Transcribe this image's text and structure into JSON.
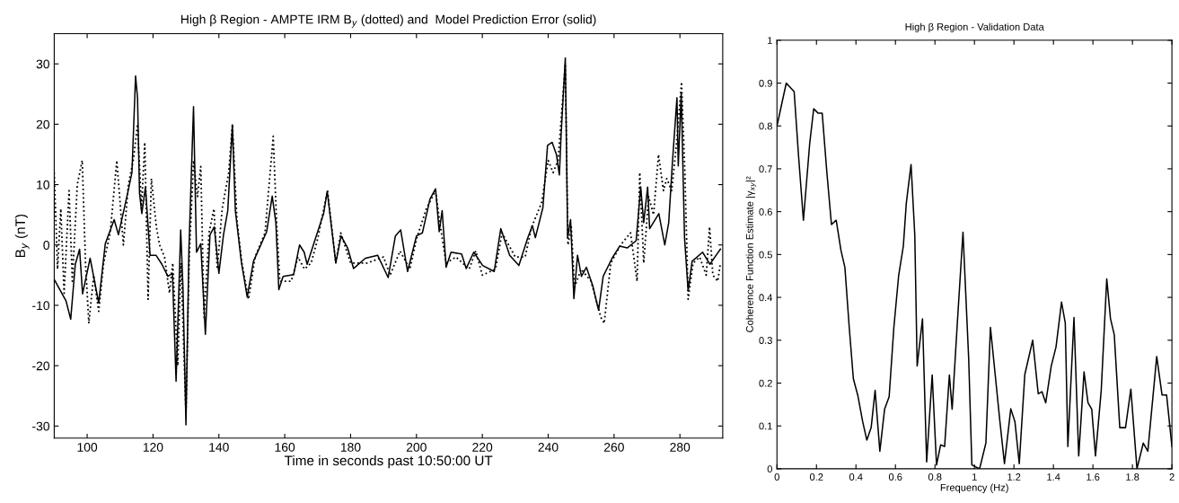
{
  "chart_data": [
    {
      "type": "line",
      "title": "High β Region - AMPTE IRM B$_{y}$ (dotted) and  Model Prediction Error (solid)",
      "xlabel": "Time in seconds past 10:50:00 UT",
      "ylabel": "B$_{y}$ (nT)",
      "xlim": [
        90,
        293
      ],
      "ylim": [
        -32,
        35
      ],
      "xticks": [
        100,
        120,
        140,
        160,
        180,
        200,
        220,
        240,
        260,
        280
      ],
      "yticks": [
        -30,
        -20,
        -10,
        0,
        10,
        20,
        30
      ],
      "grid": false,
      "series": [
        {
          "color": "#000000",
          "line_style": "dotted",
          "x": [
            90,
            91,
            92,
            93,
            94.5,
            95.5,
            97,
            98.5,
            99.5,
            100.5,
            102,
            103.5,
            105,
            107,
            109,
            111,
            112.5,
            114,
            115.3,
            116.5,
            117.5,
            118.5,
            119.5,
            121,
            122,
            123.5,
            125,
            126,
            127.5,
            128.5,
            130,
            131,
            132.3,
            133.5,
            134.5,
            135.5,
            137,
            138.5,
            139.5,
            141,
            143,
            144.1,
            145.5,
            147,
            149,
            151,
            154,
            156.5,
            157.5,
            158.5,
            160,
            162,
            164,
            166,
            168,
            170,
            173,
            175.5,
            177,
            180,
            185,
            190,
            192,
            195,
            198,
            200,
            203,
            205.8,
            207,
            209,
            212,
            216,
            218,
            220,
            224,
            226,
            230,
            233,
            235,
            238,
            240,
            241.5,
            243,
            245.2,
            246,
            247,
            248,
            250,
            253,
            256,
            257,
            259,
            262,
            265,
            267,
            267.8,
            269,
            270.5,
            272,
            273.5,
            275,
            276,
            277.5,
            279,
            280.5,
            281.5,
            282.5,
            284,
            286,
            288,
            289,
            290,
            291.5,
            292.3
          ],
          "values": [
            12,
            -4,
            6,
            -8,
            9,
            -6,
            10,
            14,
            -3,
            -13,
            -5,
            -11,
            -3,
            2,
            14,
            0,
            10,
            14,
            20,
            6,
            17,
            -9,
            11,
            3,
            0,
            -2,
            -8,
            -3,
            -20,
            -3,
            -28,
            -2,
            14,
            8,
            13,
            -12,
            2,
            6,
            -4,
            6,
            12,
            20,
            4,
            -3,
            -9,
            -2,
            2,
            18,
            4,
            -6,
            -6,
            -6,
            -2,
            -4,
            -3,
            1,
            9,
            -3,
            2,
            -3,
            -3,
            -2,
            -5,
            -1,
            -4,
            1,
            6,
            9,
            4,
            -3,
            -2,
            -4,
            -1,
            -5,
            -4,
            2,
            -2,
            -2,
            3,
            7,
            14,
            12,
            14,
            30,
            0,
            3,
            -7,
            -4,
            -6,
            -12,
            -13,
            -3,
            0,
            2,
            -6,
            12,
            -3,
            8,
            5,
            15,
            9,
            11,
            9,
            17,
            27,
            12,
            -9,
            -3,
            -2,
            -5,
            3,
            -5,
            -6,
            -3
          ]
        },
        {
          "color": "#000000",
          "line_style": "solid",
          "x": [
            90,
            93.6,
            95,
            96.4,
            97.7,
            98.6,
            100.9,
            103.5,
            105.5,
            108.2,
            109.5,
            112.3,
            113.6,
            114.7,
            115.3,
            115.9,
            116.6,
            117.7,
            119.1,
            120.9,
            122.7,
            124.5,
            125.9,
            127,
            128.4,
            129.1,
            130,
            130.9,
            132.3,
            133.2,
            134.5,
            135.9,
            137.3,
            138.6,
            140,
            141.4,
            142.7,
            144.1,
            145,
            146.8,
            148.6,
            150.5,
            152.3,
            154.5,
            156.2,
            157.3,
            158.2,
            159.5,
            162.7,
            164.5,
            165.9,
            166.8,
            169.1,
            171.8,
            172.9,
            175.5,
            177.1,
            179.1,
            180.9,
            184.5,
            188.2,
            191.4,
            193.6,
            195.2,
            197.3,
            200,
            201.8,
            204.1,
            205.8,
            206.9,
            207.8,
            209,
            210.5,
            213.7,
            215.1,
            217.4,
            220.1,
            223.6,
            225.6,
            228.3,
            231.1,
            233.8,
            235.2,
            236.1,
            238.4,
            239.8,
            241.2,
            242.5,
            243.4,
            243.9,
            245.2,
            245.9,
            246.8,
            247.8,
            248.9,
            250.1,
            251.6,
            253.5,
            255.3,
            256.7,
            259.4,
            261.7,
            264,
            266.7,
            268.1,
            269,
            270.2,
            270.8,
            273.6,
            275.4,
            276.6,
            277.7,
            279.1,
            279.5,
            280.4,
            281.4,
            282.5,
            283.7,
            286.9,
            289.1,
            291,
            292.3
          ],
          "values": [
            -5.7,
            -9.3,
            -12.3,
            -3.2,
            -0.7,
            -8.1,
            -2.2,
            -9.6,
            0.2,
            4.2,
            1.7,
            8.6,
            12,
            28,
            24.3,
            8.6,
            5.2,
            9.6,
            -1.7,
            -1.7,
            -3.2,
            -5.2,
            -4.7,
            -22.6,
            2.5,
            -7.1,
            -29.8,
            -0.7,
            22.9,
            -1.2,
            0.2,
            -14.8,
            1.7,
            3,
            -4.7,
            1.7,
            5.7,
            19.9,
            5.7,
            -2.7,
            -8.6,
            -2.7,
            -0.5,
            2.2,
            8.1,
            3.7,
            -7.4,
            -5.2,
            -4.9,
            0,
            -1.2,
            -3.2,
            0.7,
            5.2,
            8.9,
            -3,
            1.5,
            -0.5,
            -3.9,
            -2.2,
            -1.7,
            -5.4,
            1.5,
            2.5,
            -4.4,
            1.5,
            2,
            7.6,
            9.3,
            2.2,
            5.7,
            -3.7,
            -1.2,
            -1.5,
            -3.9,
            -1.2,
            -3.4,
            -4.4,
            2.7,
            -1.7,
            -3.4,
            1.2,
            3.2,
            1.2,
            6.2,
            16.5,
            17,
            15,
            11.6,
            18,
            31,
            1.2,
            4.2,
            -8.9,
            -1.7,
            -5.2,
            -3.7,
            -6.7,
            -10.8,
            -5.2,
            -2.2,
            -0.2,
            -0.5,
            0.7,
            9.6,
            3.7,
            9.6,
            2.7,
            5.2,
            0,
            3.7,
            13.5,
            24.4,
            13.1,
            25.1,
            1.2,
            -7.6,
            -2.7,
            -1.2,
            -3.2,
            -1.7,
            -0.7
          ]
        }
      ]
    },
    {
      "type": "line",
      "title": "High β Region - Validation Data",
      "xlabel": "Frequency (Hz)",
      "ylabel": "Coherence Function Estimate |γ$_{xy}$|²",
      "xlim": [
        0,
        2
      ],
      "ylim": [
        0,
        1
      ],
      "xticks": [
        0,
        0.2,
        0.4,
        0.6,
        0.8,
        1,
        1.2,
        1.4,
        1.6,
        1.8,
        2
      ],
      "yticks": [
        0,
        0.1,
        0.2,
        0.3,
        0.4,
        0.5,
        0.6,
        0.7,
        0.8,
        0.9,
        1
      ],
      "grid": false,
      "series": [
        {
          "color": "#000000",
          "line_style": "solid",
          "x": [
            0,
            0.047,
            0.087,
            0.11,
            0.134,
            0.166,
            0.186,
            0.208,
            0.229,
            0.253,
            0.276,
            0.3,
            0.324,
            0.344,
            0.366,
            0.387,
            0.41,
            0.434,
            0.455,
            0.477,
            0.497,
            0.521,
            0.545,
            0.568,
            0.592,
            0.616,
            0.64,
            0.655,
            0.679,
            0.698,
            0.71,
            0.737,
            0.758,
            0.786,
            0.808,
            0.829,
            0.849,
            0.873,
            0.887,
            0.912,
            0.942,
            0.971,
            0.987,
            1.026,
            1.058,
            1.081,
            1.105,
            1.129,
            1.152,
            1.184,
            1.205,
            1.227,
            1.255,
            1.295,
            1.323,
            1.342,
            1.361,
            1.389,
            1.413,
            1.441,
            1.46,
            1.473,
            1.504,
            1.528,
            1.555,
            1.575,
            1.594,
            1.613,
            1.642,
            1.67,
            1.689,
            1.708,
            1.736,
            1.765,
            1.792,
            1.823,
            1.855,
            1.878,
            1.923,
            1.95,
            1.973,
            2
          ],
          "values": [
            0.8,
            0.9,
            0.88,
            0.726,
            0.58,
            0.76,
            0.84,
            0.83,
            0.83,
            0.69,
            0.57,
            0.58,
            0.51,
            0.47,
            0.33,
            0.21,
            0.17,
            0.11,
            0.067,
            0.096,
            0.183,
            0.041,
            0.139,
            0.168,
            0.33,
            0.45,
            0.52,
            0.62,
            0.71,
            0.545,
            0.24,
            0.35,
            0.016,
            0.219,
            0.009,
            0.056,
            0.052,
            0.219,
            0.139,
            0.33,
            0.552,
            0.255,
            0.009,
            0,
            0.06,
            0.33,
            0.22,
            0.11,
            0.012,
            0.14,
            0.11,
            0.012,
            0.22,
            0.3,
            0.175,
            0.18,
            0.154,
            0.24,
            0.284,
            0.389,
            0.34,
            0.052,
            0.353,
            0.03,
            0.226,
            0.154,
            0.139,
            0.03,
            0.183,
            0.443,
            0.35,
            0.313,
            0.096,
            0.096,
            0.186,
            0,
            0.06,
            0.041,
            0.262,
            0.172,
            0.172,
            0.052
          ]
        }
      ]
    }
  ]
}
